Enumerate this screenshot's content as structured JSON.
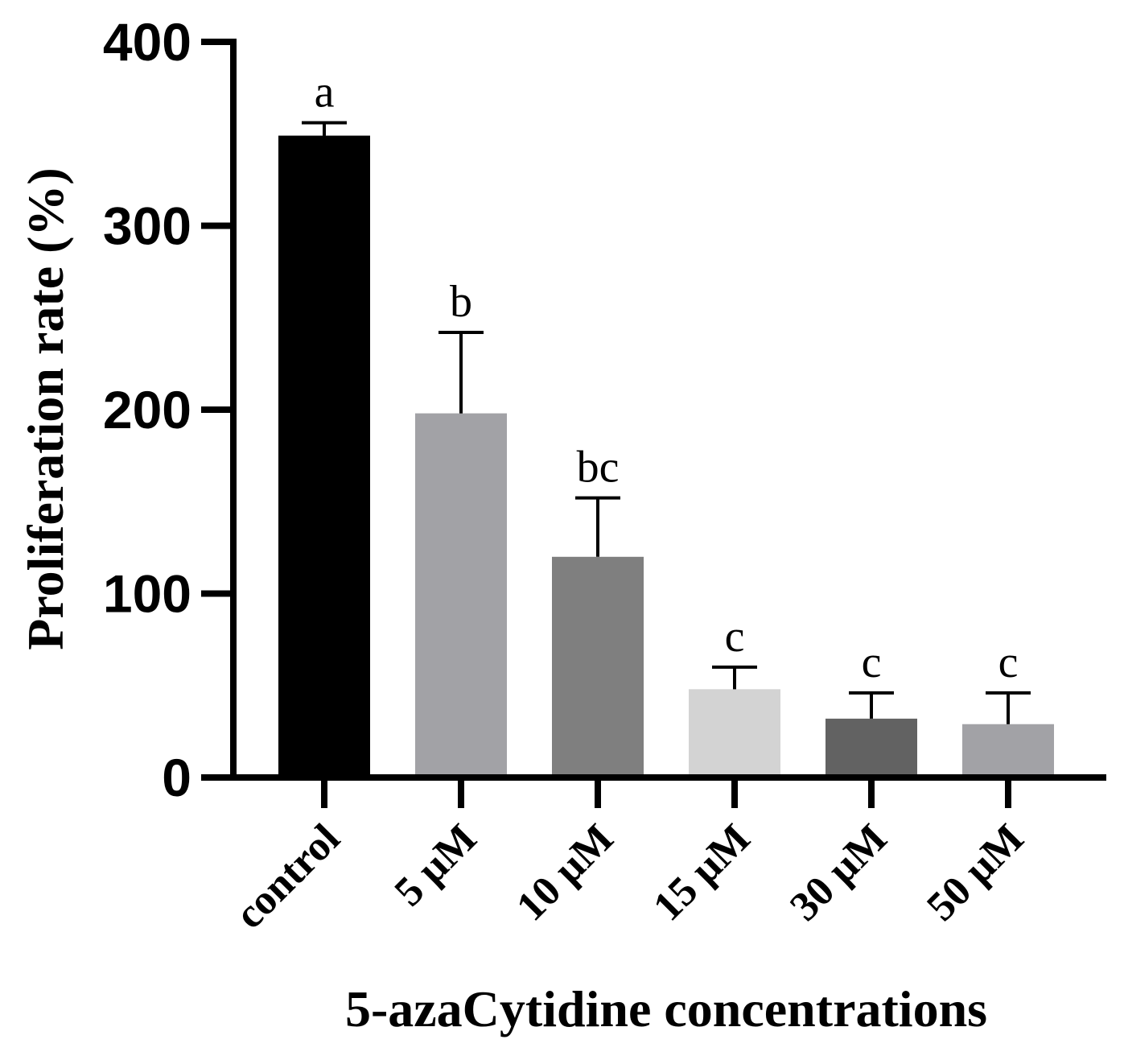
{
  "chart_data": {
    "type": "bar",
    "xlabel": "5-azaCytidine concentrations",
    "ylabel": "Proliferation rate (%)",
    "ylim": [
      0,
      400
    ],
    "yticks": [
      "0",
      "100",
      "200",
      "300",
      "400"
    ],
    "grid": false,
    "categories": [
      "control",
      "5 µM",
      "10 µM",
      "15 µM",
      "30 µM",
      "50 µM"
    ],
    "values": [
      349,
      198,
      120,
      48,
      32,
      29
    ],
    "error_upper": [
      356,
      242,
      152,
      60,
      46,
      46
    ],
    "significance": [
      "a",
      "b",
      "bc",
      "c",
      "c",
      "c"
    ],
    "colors": [
      "#000000",
      "#a2a2a6",
      "#7f7f7f",
      "#d3d3d3",
      "#626262",
      "#a2a2a6"
    ]
  }
}
